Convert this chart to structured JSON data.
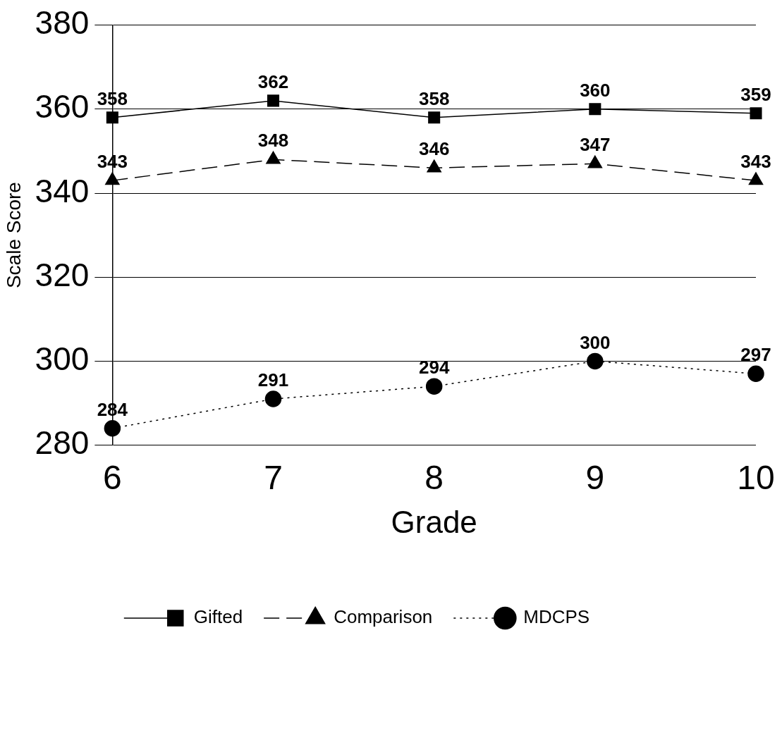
{
  "chart_data": {
    "type": "line",
    "xlabel": "Grade",
    "ylabel": "Scale Score",
    "categories": [
      "6",
      "7",
      "8",
      "9",
      "10"
    ],
    "ylim": [
      280,
      380
    ],
    "yticks": [
      280,
      300,
      320,
      340,
      360,
      380
    ],
    "grid": "y",
    "legend": "bottom",
    "data_labels": true,
    "series": [
      {
        "name": "Gifted",
        "color": "#000000",
        "marker": "square",
        "line_style": "solid",
        "values": [
          358,
          362,
          358,
          360,
          359
        ]
      },
      {
        "name": "Comparison",
        "color": "#000000",
        "marker": "triangle",
        "line_style": "dashed",
        "values": [
          343,
          348,
          346,
          347,
          343
        ]
      },
      {
        "name": "MDCPS",
        "color": "#000000",
        "marker": "circle",
        "line_style": "dotted",
        "values": [
          284,
          291,
          294,
          300,
          297
        ]
      }
    ]
  }
}
